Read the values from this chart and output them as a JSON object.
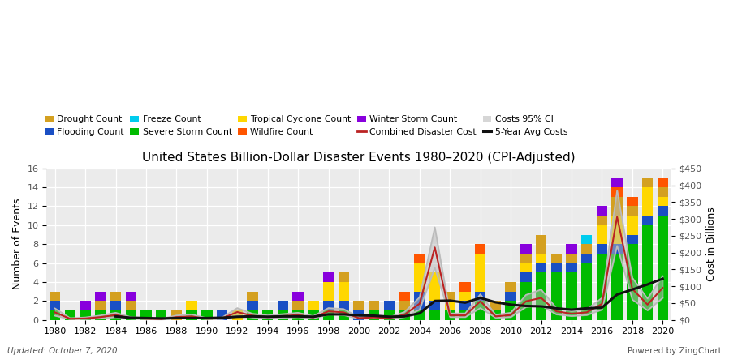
{
  "title": "United States Billion-Dollar Disaster Events 1980–2020 (CPI-Adjusted)",
  "ylabel_left": "Number of Events",
  "ylabel_right": "Cost in Billions",
  "footer_left": "Updated: October 7, 2020",
  "footer_right": "Powered by ZingChart",
  "years": [
    1980,
    1981,
    1982,
    1983,
    1984,
    1985,
    1986,
    1987,
    1988,
    1989,
    1990,
    1991,
    1992,
    1993,
    1994,
    1995,
    1996,
    1997,
    1998,
    1999,
    2000,
    2001,
    2002,
    2003,
    2004,
    2005,
    2006,
    2007,
    2008,
    2009,
    2010,
    2011,
    2012,
    2013,
    2014,
    2015,
    2016,
    2017,
    2018,
    2019,
    2020
  ],
  "drought": [
    1,
    0,
    0,
    1,
    1,
    1,
    0,
    0,
    1,
    0,
    0,
    0,
    0,
    1,
    0,
    0,
    1,
    0,
    0,
    1,
    1,
    1,
    0,
    1,
    0,
    0,
    1,
    0,
    0,
    1,
    1,
    1,
    2,
    1,
    1,
    1,
    1,
    2,
    1,
    1,
    1
  ],
  "wildfire": [
    0,
    0,
    0,
    0,
    0,
    0,
    0,
    0,
    0,
    0,
    0,
    0,
    0,
    0,
    0,
    0,
    0,
    0,
    0,
    0,
    0,
    0,
    0,
    1,
    1,
    0,
    0,
    1,
    1,
    0,
    0,
    0,
    0,
    0,
    0,
    0,
    0,
    1,
    1,
    0,
    1
  ],
  "flooding": [
    1,
    0,
    0,
    0,
    1,
    0,
    0,
    0,
    0,
    0,
    0,
    1,
    0,
    1,
    0,
    1,
    0,
    0,
    1,
    1,
    1,
    0,
    1,
    0,
    2,
    1,
    0,
    1,
    1,
    0,
    1,
    1,
    1,
    1,
    1,
    1,
    1,
    1,
    1,
    1,
    1
  ],
  "winter_storm": [
    0,
    0,
    1,
    1,
    0,
    1,
    0,
    0,
    0,
    0,
    0,
    0,
    0,
    0,
    0,
    0,
    1,
    0,
    1,
    0,
    0,
    0,
    0,
    0,
    0,
    0,
    0,
    0,
    0,
    0,
    0,
    1,
    0,
    0,
    1,
    0,
    1,
    1,
    0,
    0,
    0
  ],
  "freeze": [
    0,
    0,
    0,
    0,
    0,
    0,
    0,
    0,
    0,
    0,
    0,
    0,
    0,
    0,
    0,
    0,
    0,
    0,
    0,
    0,
    0,
    0,
    0,
    0,
    0,
    0,
    0,
    0,
    0,
    0,
    0,
    0,
    0,
    0,
    0,
    1,
    0,
    0,
    0,
    0,
    0
  ],
  "severe_storm": [
    1,
    1,
    1,
    1,
    1,
    1,
    1,
    1,
    0,
    1,
    1,
    0,
    0,
    1,
    1,
    1,
    1,
    1,
    1,
    1,
    0,
    1,
    1,
    1,
    1,
    1,
    1,
    1,
    2,
    1,
    2,
    4,
    5,
    5,
    5,
    6,
    7,
    7,
    8,
    10,
    11
  ],
  "tropical_cyclone": [
    0,
    0,
    0,
    0,
    0,
    0,
    0,
    0,
    0,
    1,
    0,
    0,
    1,
    0,
    0,
    0,
    0,
    1,
    2,
    2,
    0,
    0,
    0,
    0,
    3,
    3,
    1,
    1,
    4,
    0,
    0,
    1,
    1,
    0,
    0,
    0,
    2,
    3,
    2,
    3,
    1
  ],
  "combined_cost": [
    22,
    3,
    4,
    8,
    14,
    5,
    3,
    2,
    8,
    10,
    3,
    4,
    23,
    12,
    8,
    11,
    14,
    7,
    25,
    22,
    5,
    7,
    5,
    15,
    48,
    215,
    13,
    13,
    55,
    10,
    14,
    55,
    65,
    25,
    18,
    22,
    47,
    306,
    92,
    45,
    95
  ],
  "cost_95_low": [
    12,
    2,
    2,
    4,
    8,
    3,
    2,
    1,
    4,
    6,
    2,
    2,
    12,
    7,
    4,
    6,
    8,
    4,
    16,
    14,
    3,
    4,
    3,
    8,
    30,
    155,
    8,
    8,
    35,
    6,
    8,
    38,
    42,
    16,
    11,
    14,
    30,
    220,
    60,
    28,
    65
  ],
  "cost_95_high": [
    34,
    5,
    7,
    13,
    21,
    8,
    5,
    3,
    13,
    16,
    5,
    7,
    35,
    18,
    13,
    17,
    21,
    11,
    35,
    32,
    8,
    11,
    8,
    23,
    67,
    275,
    19,
    19,
    76,
    15,
    21,
    74,
    90,
    35,
    26,
    31,
    65,
    385,
    125,
    63,
    130
  ],
  "avg_5yr_cost": [
    null,
    null,
    null,
    null,
    10,
    6,
    5,
    4,
    5,
    5,
    5,
    6,
    9,
    10,
    9,
    10,
    10,
    9,
    16,
    16,
    13,
    12,
    9,
    10,
    19,
    56,
    57,
    51,
    65,
    52,
    45,
    41,
    40,
    34,
    30,
    34,
    36,
    75,
    90,
    105,
    122
  ],
  "colors": {
    "drought": "#D4A020",
    "wildfire": "#FF5500",
    "flooding": "#1A4FC4",
    "winter_storm": "#8800DD",
    "freeze": "#00CCEE",
    "severe_storm": "#00BB00",
    "tropical_cyclone": "#FFD700",
    "combined_cost": "#BB2222",
    "cost_95_ci": "#BBBBBB",
    "avg_5yr": "#111111",
    "background": "#EBEBEB",
    "grid": "#FFFFFF"
  },
  "ylim_left": [
    0,
    16
  ],
  "ylim_right": [
    0,
    450
  ],
  "yticks_left": [
    0,
    2,
    4,
    6,
    8,
    10,
    12,
    14,
    16
  ],
  "yticks_right": [
    0,
    50,
    100,
    150,
    200,
    250,
    300,
    350,
    400,
    450
  ]
}
